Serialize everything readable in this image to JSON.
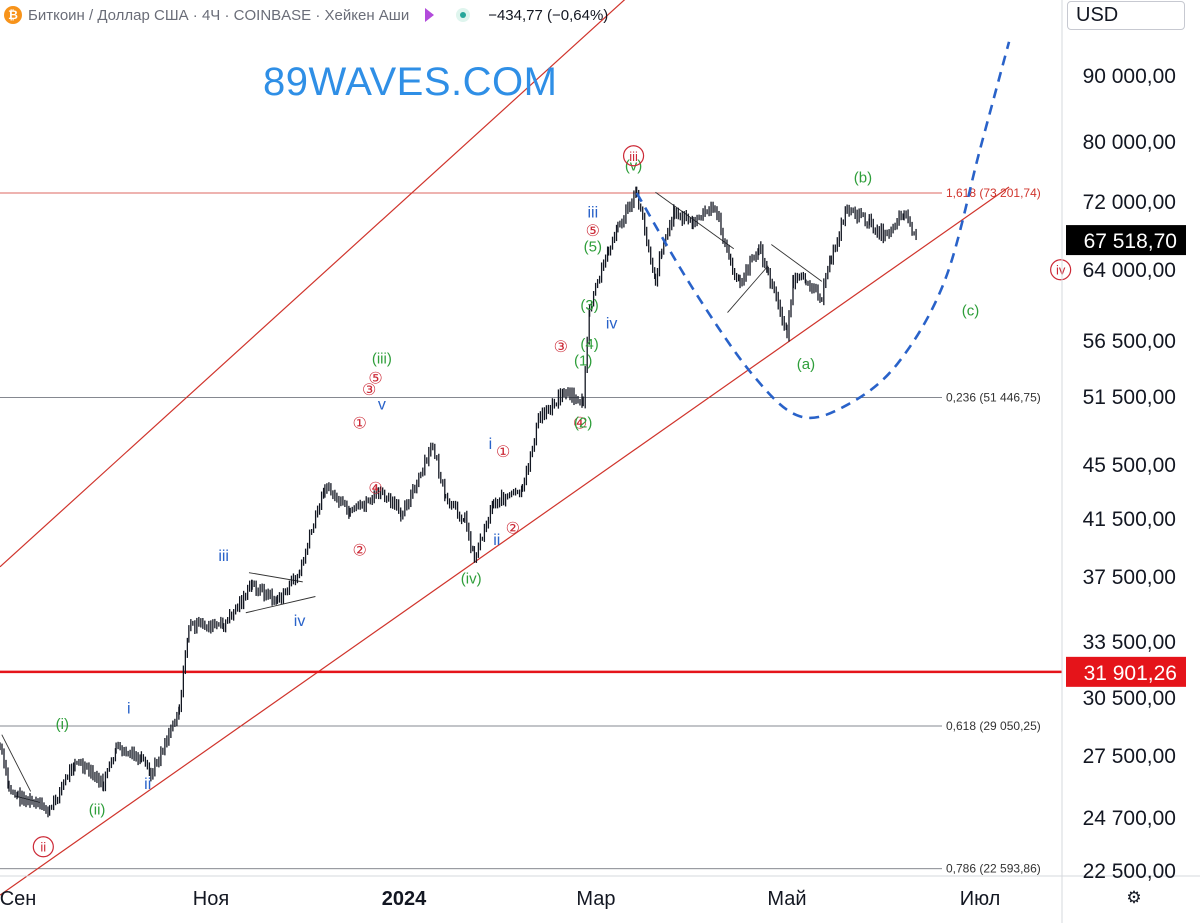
{
  "header": {
    "symbol": "Биткоин / Доллар США",
    "interval": "4Ч",
    "exchange": "COINBASE",
    "chart_style": "Хейкен Аши",
    "change": "−434,77 (−0,64%)",
    "separator": "·",
    "coin_glyph": "₿"
  },
  "currency": "USD",
  "watermark": "89WAVES.COM",
  "settings_icon": "gear-icon",
  "colors": {
    "price_line": "#e5141a",
    "channel": "#d0342c",
    "forecast": "#2962c9",
    "fib_line": "#5d606b",
    "green_label": "#2e9e3a",
    "blue_label": "#2962c9",
    "red_label": "#cc2936",
    "candles": "#131722"
  },
  "chart_data": {
    "type": "candlestick",
    "price_axis_labels": [
      "90 000,00",
      "80 000,00",
      "72 000,00",
      "64 000,00",
      "56 500,00",
      "51 500,00",
      "45 500,00",
      "41 500,00",
      "37 500,00",
      "33 500,00",
      "30 500,00",
      "27 500,00",
      "24 700,00",
      "22 500,00"
    ],
    "time_axis_labels": [
      {
        "label": "Сен",
        "date": "2023-09-01",
        "bold": false
      },
      {
        "label": "Ноя",
        "date": "2023-11-01",
        "bold": false
      },
      {
        "label": "2024",
        "date": "2024-01-01",
        "bold": true
      },
      {
        "label": "Мар",
        "date": "2024-03-01",
        "bold": false
      },
      {
        "label": "Май",
        "date": "2024-05-01",
        "bold": false
      },
      {
        "label": "Июл",
        "date": "2024-07-01",
        "bold": false
      }
    ],
    "last_price": {
      "label": "67 518,70",
      "value": 67518.7
    },
    "level_line": {
      "label": "31 901,26",
      "value": 31901.26
    },
    "fib_levels": [
      {
        "label": "1,618 (73 201,74)",
        "value": 73201.74
      },
      {
        "label": "0,236 (51 446,75)",
        "value": 51446.75
      },
      {
        "label": "0,618 (29 050,25)",
        "value": 29050.25
      },
      {
        "label": "0,786 (22 593,86)",
        "value": 22593.86
      }
    ],
    "price_path": [
      {
        "date": "2023-08-22",
        "price": 28000
      },
      {
        "date": "2023-08-27",
        "price": 26000
      },
      {
        "date": "2023-09-01",
        "price": 25700
      },
      {
        "date": "2023-09-11",
        "price": 25000
      },
      {
        "date": "2023-09-19",
        "price": 27300
      },
      {
        "date": "2023-09-28",
        "price": 26200
      },
      {
        "date": "2023-10-02",
        "price": 27900
      },
      {
        "date": "2023-10-10",
        "price": 27300
      },
      {
        "date": "2023-10-13",
        "price": 26600
      },
      {
        "date": "2023-10-22",
        "price": 30000
      },
      {
        "date": "2023-10-25",
        "price": 34500
      },
      {
        "date": "2023-11-05",
        "price": 34500
      },
      {
        "date": "2023-11-14",
        "price": 37000
      },
      {
        "date": "2023-11-22",
        "price": 36000
      },
      {
        "date": "2023-11-29",
        "price": 37800
      },
      {
        "date": "2023-12-07",
        "price": 44000
      },
      {
        "date": "2023-12-15",
        "price": 41800
      },
      {
        "date": "2023-12-24",
        "price": 43500
      },
      {
        "date": "2023-12-31",
        "price": 42000
      },
      {
        "date": "2024-01-05",
        "price": 44000
      },
      {
        "date": "2024-01-10",
        "price": 47300
      },
      {
        "date": "2024-01-14",
        "price": 42800
      },
      {
        "date": "2024-01-20",
        "price": 41500
      },
      {
        "date": "2024-01-23",
        "price": 38800
      },
      {
        "date": "2024-01-29",
        "price": 42800
      },
      {
        "date": "2024-02-07",
        "price": 43500
      },
      {
        "date": "2024-02-12",
        "price": 49500
      },
      {
        "date": "2024-02-20",
        "price": 52000
      },
      {
        "date": "2024-02-26",
        "price": 51000
      },
      {
        "date": "2024-02-28",
        "price": 60000
      },
      {
        "date": "2024-03-05",
        "price": 66500
      },
      {
        "date": "2024-03-08",
        "price": 69000
      },
      {
        "date": "2024-03-14",
        "price": 73200
      },
      {
        "date": "2024-03-20",
        "price": 63000
      },
      {
        "date": "2024-03-22",
        "price": 66500
      },
      {
        "date": "2024-03-26",
        "price": 70800
      },
      {
        "date": "2024-04-01",
        "price": 69500
      },
      {
        "date": "2024-04-08",
        "price": 71500
      },
      {
        "date": "2024-04-13",
        "price": 64500
      },
      {
        "date": "2024-04-16",
        "price": 62500
      },
      {
        "date": "2024-04-22",
        "price": 66700
      },
      {
        "date": "2024-04-25",
        "price": 63500
      },
      {
        "date": "2024-05-01",
        "price": 57500
      },
      {
        "date": "2024-05-03",
        "price": 62800
      },
      {
        "date": "2024-05-07",
        "price": 63000
      },
      {
        "date": "2024-05-12",
        "price": 61200
      },
      {
        "date": "2024-05-15",
        "price": 65500
      },
      {
        "date": "2024-05-20",
        "price": 71300
      },
      {
        "date": "2024-05-27",
        "price": 69500
      },
      {
        "date": "2024-06-01",
        "price": 68000
      },
      {
        "date": "2024-06-07",
        "price": 71000
      },
      {
        "date": "2024-06-11",
        "price": 67518.7
      }
    ],
    "channel_lines": [
      {
        "from": {
          "date": "2023-08-22",
          "price": 38200
        },
        "to": {
          "date": "2024-06-23",
          "price": 200000
        }
      },
      {
        "from": {
          "date": "2023-08-22",
          "price": 21500
        },
        "to": {
          "date": "2024-07-10",
          "price": 74000
        }
      }
    ],
    "triangles": [
      [
        {
          "date": "2023-08-23",
          "price": 28600
        },
        {
          "date": "2023-09-05",
          "price": 25900
        },
        {
          "date": "2023-09-08",
          "price": 25400
        },
        {
          "date": "2023-08-30",
          "price": 25700
        }
      ],
      [
        {
          "date": "2023-11-13",
          "price": 37800
        },
        {
          "date": "2023-11-30",
          "price": 37200
        },
        {
          "date": "2023-12-04",
          "price": 36300
        },
        {
          "date": "2023-11-12",
          "price": 35300
        }
      ],
      [
        {
          "date": "2024-03-20",
          "price": 73300
        },
        {
          "date": "2024-04-14",
          "price": 66500
        },
        {
          "date": "2024-04-25",
          "price": 64500
        },
        {
          "date": "2024-04-12",
          "price": 59500
        }
      ],
      [
        {
          "date": "2024-04-26",
          "price": 67000
        },
        {
          "date": "2024-05-12",
          "price": 62800
        }
      ]
    ],
    "forecast_path": [
      {
        "date": "2024-03-14",
        "price": 73200
      },
      {
        "date": "2024-04-01",
        "price": 62000
      },
      {
        "date": "2024-04-20",
        "price": 53500
      },
      {
        "date": "2024-05-05",
        "price": 49800
      },
      {
        "date": "2024-05-20",
        "price": 50800
      },
      {
        "date": "2024-06-05",
        "price": 54500
      },
      {
        "date": "2024-06-20",
        "price": 63000
      },
      {
        "date": "2024-07-01",
        "price": 79000
      },
      {
        "date": "2024-07-10",
        "price": 100000
      }
    ],
    "wave_labels": [
      {
        "text": "ii",
        "date": "2023-09-09",
        "price": 23300,
        "color": "red",
        "circled": true
      },
      {
        "text": "(i)",
        "date": "2023-09-15",
        "price": 28900,
        "color": "green",
        "circled": false
      },
      {
        "text": "(ii)",
        "date": "2023-09-26",
        "price": 24850,
        "color": "green",
        "circled": false
      },
      {
        "text": "i",
        "date": "2023-10-06",
        "price": 29700,
        "color": "blue",
        "circled": false
      },
      {
        "text": "ii",
        "date": "2023-10-12",
        "price": 26000,
        "color": "blue",
        "circled": false
      },
      {
        "text": "iii",
        "date": "2023-11-05",
        "price": 38600,
        "color": "blue",
        "circled": false
      },
      {
        "text": "iv",
        "date": "2023-11-29",
        "price": 34500,
        "color": "blue",
        "circled": false
      },
      {
        "text": "①",
        "date": "2023-12-18",
        "price": 48700,
        "color": "red",
        "circled": false
      },
      {
        "text": "②",
        "date": "2023-12-18",
        "price": 39000,
        "color": "red",
        "circled": false
      },
      {
        "text": "③",
        "date": "2023-12-21",
        "price": 51700,
        "color": "red",
        "circled": false
      },
      {
        "text": "⑤",
        "date": "2023-12-23",
        "price": 52700,
        "color": "red",
        "circled": false
      },
      {
        "text": "(iii)",
        "date": "2023-12-25",
        "price": 54500,
        "color": "green",
        "circled": false
      },
      {
        "text": "v",
        "date": "2023-12-25",
        "price": 50400,
        "color": "blue",
        "circled": false
      },
      {
        "text": "④",
        "date": "2023-12-23",
        "price": 43400,
        "color": "red",
        "circled": false
      },
      {
        "text": "(iv)",
        "date": "2024-01-22",
        "price": 37100,
        "color": "green",
        "circled": false
      },
      {
        "text": "i",
        "date": "2024-01-28",
        "price": 46900,
        "color": "blue",
        "circled": false
      },
      {
        "text": "①",
        "date": "2024-02-01",
        "price": 46200,
        "color": "red",
        "circled": false
      },
      {
        "text": "ii",
        "date": "2024-01-30",
        "price": 39700,
        "color": "blue",
        "circled": false
      },
      {
        "text": "②",
        "date": "2024-02-04",
        "price": 40500,
        "color": "red",
        "circled": false
      },
      {
        "text": "③",
        "date": "2024-02-19",
        "price": 55500,
        "color": "red",
        "circled": false
      },
      {
        "text": "④",
        "date": "2024-02-25",
        "price": 48700,
        "color": "red",
        "circled": false
      },
      {
        "text": "(2)",
        "date": "2024-02-26",
        "price": 48800,
        "color": "green",
        "circled": false
      },
      {
        "text": "(1)",
        "date": "2024-02-26",
        "price": 54300,
        "color": "green",
        "circled": false
      },
      {
        "text": "(4)",
        "date": "2024-02-28",
        "price": 55800,
        "color": "green",
        "circled": false
      },
      {
        "text": "(3)",
        "date": "2024-02-28",
        "price": 59800,
        "color": "green",
        "circled": false
      },
      {
        "text": "(5)",
        "date": "2024-02-29",
        "price": 66200,
        "color": "green",
        "circled": false
      },
      {
        "text": "⑤",
        "date": "2024-02-29",
        "price": 68000,
        "color": "red",
        "circled": false
      },
      {
        "text": "iii",
        "date": "2024-02-29",
        "price": 70200,
        "color": "blue",
        "circled": false
      },
      {
        "text": "iv",
        "date": "2024-03-06",
        "price": 57800,
        "color": "blue",
        "circled": false
      },
      {
        "text": "(v)",
        "date": "2024-03-13",
        "price": 76200,
        "color": "green",
        "circled": false
      },
      {
        "text": "iii",
        "date": "2024-03-13",
        "price": 77500,
        "color": "red",
        "circled": true
      },
      {
        "text": "(a)",
        "date": "2024-05-07",
        "price": 54000,
        "color": "green",
        "circled": false
      },
      {
        "text": "(b)",
        "date": "2024-05-25",
        "price": 74600,
        "color": "green",
        "circled": false
      },
      {
        "text": "(c)",
        "date": "2024-06-28",
        "price": 59200,
        "color": "green",
        "circled": false
      },
      {
        "text": "iv",
        "date": "2024-07-26",
        "price": 63500,
        "color": "red",
        "circled": true
      }
    ]
  }
}
